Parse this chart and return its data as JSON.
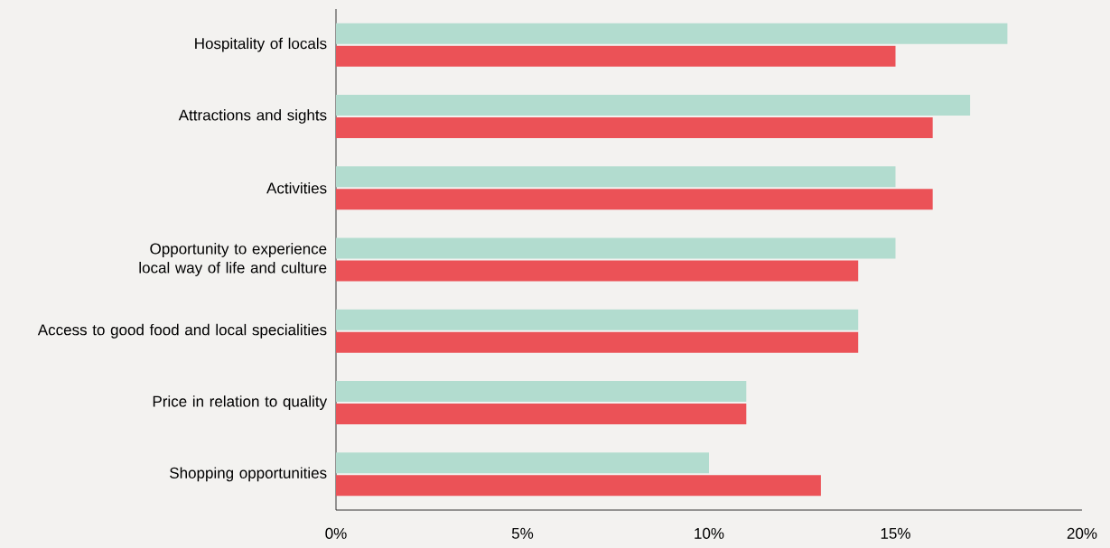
{
  "chart_data": {
    "type": "bar",
    "orientation": "horizontal",
    "categories": [
      "Hospitality of locals",
      "Attractions and sights",
      "Activities",
      "Opportunity to experience local way of life and culture",
      "Access to good food and local specialities",
      "Price in relation to quality",
      "Shopping opportunities"
    ],
    "series": [
      {
        "color": "#eb5257",
        "values": [
          15,
          16,
          16,
          14,
          14,
          11,
          13
        ]
      },
      {
        "color": "#b2dccf",
        "values": [
          18,
          17,
          15,
          15,
          14,
          11,
          10
        ]
      }
    ],
    "xlim": [
      0,
      20
    ],
    "xticks": [
      {
        "value": 0,
        "label": "0%"
      },
      {
        "value": 5,
        "label": "5%"
      },
      {
        "value": 10,
        "label": "10%"
      },
      {
        "value": 15,
        "label": "15%"
      },
      {
        "value": 20,
        "label": "20%"
      }
    ]
  }
}
